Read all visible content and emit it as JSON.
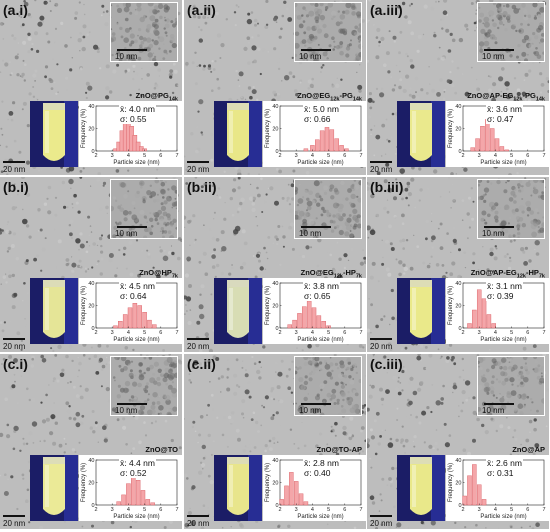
{
  "figure": {
    "panels": [
      {
        "label": "(a.i)",
        "name_parts": [
          [
            "ZnO@PG",
            ""
          ],
          [
            "14k",
            "sub"
          ]
        ],
        "mean": "x̄: 4.0 nm",
        "sigma": "σ: 0.55",
        "inset_scale": "10 nm",
        "scale": "20 nm",
        "histo_bins": [
          {
            "x": 3.2,
            "f": 2
          },
          {
            "x": 3.4,
            "f": 8
          },
          {
            "x": 3.6,
            "f": 18
          },
          {
            "x": 3.8,
            "f": 27
          },
          {
            "x": 4.0,
            "f": 30
          },
          {
            "x": 4.2,
            "f": 22
          },
          {
            "x": 4.4,
            "f": 14
          },
          {
            "x": 4.6,
            "f": 8
          },
          {
            "x": 4.8,
            "f": 4
          },
          {
            "x": 5.0,
            "f": 2
          }
        ],
        "glow": "#f7f58e"
      },
      {
        "label": "(a.ii)",
        "name_parts": [
          [
            "ZnO@EG",
            ""
          ],
          [
            "12k",
            "sub"
          ],
          [
            "-PG",
            ""
          ],
          [
            "14k",
            "sub"
          ]
        ],
        "mean": "x̄: 5.0 nm",
        "sigma": "σ: 0.66",
        "inset_scale": "10 nm",
        "scale": "20 nm",
        "histo_bins": [
          {
            "x": 3.6,
            "f": 2
          },
          {
            "x": 4.0,
            "f": 5
          },
          {
            "x": 4.3,
            "f": 10
          },
          {
            "x": 4.6,
            "f": 18
          },
          {
            "x": 4.9,
            "f": 21
          },
          {
            "x": 5.2,
            "f": 19
          },
          {
            "x": 5.5,
            "f": 11
          },
          {
            "x": 5.8,
            "f": 5
          },
          {
            "x": 6.1,
            "f": 2
          }
        ],
        "glow": "#f4f28a"
      },
      {
        "label": "(a.iii)",
        "name_parts": [
          [
            "ZnO@AP-EG",
            ""
          ],
          [
            "12k",
            "sub"
          ],
          [
            "-PG",
            ""
          ],
          [
            "14k",
            "sub"
          ]
        ],
        "mean": "x̄: 3.6 nm",
        "sigma": "σ: 0.47",
        "inset_scale": "10 nm",
        "scale": "20 nm",
        "histo_bins": [
          {
            "x": 2.6,
            "f": 3
          },
          {
            "x": 2.9,
            "f": 11
          },
          {
            "x": 3.2,
            "f": 22
          },
          {
            "x": 3.5,
            "f": 28
          },
          {
            "x": 3.8,
            "f": 20
          },
          {
            "x": 4.1,
            "f": 11
          },
          {
            "x": 4.4,
            "f": 4
          },
          {
            "x": 4.7,
            "f": 1
          }
        ],
        "glow": "#f6f48f"
      },
      {
        "label": "(b.i)",
        "name_parts": [
          [
            "ZnO@HP",
            ""
          ],
          [
            "7k",
            "sub"
          ]
        ],
        "mean": "x̄: 4.5 nm",
        "sigma": "σ: 0.64",
        "inset_scale": "10 nm",
        "scale": "20 nm",
        "histo_bins": [
          {
            "x": 3.2,
            "f": 2
          },
          {
            "x": 3.5,
            "f": 6
          },
          {
            "x": 3.8,
            "f": 12
          },
          {
            "x": 4.1,
            "f": 18
          },
          {
            "x": 4.4,
            "f": 22
          },
          {
            "x": 4.7,
            "f": 20
          },
          {
            "x": 5.0,
            "f": 14
          },
          {
            "x": 5.3,
            "f": 7
          },
          {
            "x": 5.6,
            "f": 3
          }
        ],
        "glow": "#f0f09a"
      },
      {
        "label": "(b.ii)",
        "name_parts": [
          [
            "ZnO@EG",
            ""
          ],
          [
            "12k",
            "sub"
          ],
          [
            "-HP",
            ""
          ],
          [
            "7k",
            "sub"
          ]
        ],
        "mean": "x̄: 3.8 nm",
        "sigma": "σ: 0.65",
        "inset_scale": "10 nm",
        "scale": "20 nm",
        "histo_bins": [
          {
            "x": 2.6,
            "f": 3
          },
          {
            "x": 2.9,
            "f": 7
          },
          {
            "x": 3.2,
            "f": 13
          },
          {
            "x": 3.5,
            "f": 19
          },
          {
            "x": 3.8,
            "f": 24
          },
          {
            "x": 4.1,
            "f": 18
          },
          {
            "x": 4.4,
            "f": 11
          },
          {
            "x": 4.7,
            "f": 6
          },
          {
            "x": 5.0,
            "f": 2
          }
        ],
        "glow": "#e3e8b8"
      },
      {
        "label": "(b.iii)",
        "name_parts": [
          [
            "ZnO@AP-EG",
            ""
          ],
          [
            "12k",
            "sub"
          ],
          [
            "-HP",
            ""
          ],
          [
            "7k",
            "sub"
          ]
        ],
        "mean": "x̄: 3.1 nm",
        "sigma": "σ: 0.39",
        "inset_scale": "10 nm",
        "scale": "20 nm",
        "histo_bins": [
          {
            "x": 2.4,
            "f": 4
          },
          {
            "x": 2.7,
            "f": 16
          },
          {
            "x": 3.0,
            "f": 34
          },
          {
            "x": 3.3,
            "f": 26
          },
          {
            "x": 3.6,
            "f": 12
          },
          {
            "x": 3.9,
            "f": 4
          }
        ],
        "glow": "#f5f48c"
      },
      {
        "label": "(c.i)",
        "name_parts": [
          [
            "ZnO@TO",
            ""
          ]
        ],
        "mean": "x̄: 4.4 nm",
        "sigma": "σ: 0.52",
        "inset_scale": "10 nm",
        "scale": "20 nm",
        "histo_bins": [
          {
            "x": 3.4,
            "f": 3
          },
          {
            "x": 3.7,
            "f": 9
          },
          {
            "x": 4.0,
            "f": 19
          },
          {
            "x": 4.3,
            "f": 27
          },
          {
            "x": 4.6,
            "f": 22
          },
          {
            "x": 4.9,
            "f": 13
          },
          {
            "x": 5.2,
            "f": 5
          },
          {
            "x": 5.5,
            "f": 2
          }
        ],
        "glow": "#f7f59a"
      },
      {
        "label": "(c.ii)",
        "name_parts": [
          [
            "ZnO@TO-AP",
            ""
          ]
        ],
        "mean": "x̄: 2.8 nm",
        "sigma": "σ: 0.40",
        "inset_scale": "10 nm",
        "scale": "20 nm",
        "histo_bins": [
          {
            "x": 2.1,
            "f": 5
          },
          {
            "x": 2.4,
            "f": 17
          },
          {
            "x": 2.7,
            "f": 29
          },
          {
            "x": 3.0,
            "f": 21
          },
          {
            "x": 3.3,
            "f": 10
          },
          {
            "x": 3.6,
            "f": 3
          }
        ],
        "glow": "#f3f08e"
      },
      {
        "label": "(c.iii)",
        "name_parts": [
          [
            "ZnO@AP",
            ""
          ]
        ],
        "mean": "x̄: 2.6 nm",
        "sigma": "σ: 0.31",
        "inset_scale": "10 nm",
        "scale": "20 nm",
        "histo_bins": [
          {
            "x": 2.1,
            "f": 8
          },
          {
            "x": 2.4,
            "f": 26
          },
          {
            "x": 2.7,
            "f": 36
          },
          {
            "x": 3.0,
            "f": 18
          },
          {
            "x": 3.3,
            "f": 5
          }
        ],
        "glow": "#f4f38c"
      }
    ],
    "histogram": {
      "ylabel": "Frequency (%)",
      "xlabel": "Particle size (nm)",
      "yticks": [
        "0",
        "20",
        "40"
      ],
      "xticks": [
        "2",
        "3",
        "4",
        "5",
        "6",
        "7"
      ],
      "ylim": [
        0,
        40
      ],
      "xlim": [
        2,
        7
      ],
      "bar_color": "#f4a6a9",
      "bar_edge": "#d7575d"
    }
  }
}
